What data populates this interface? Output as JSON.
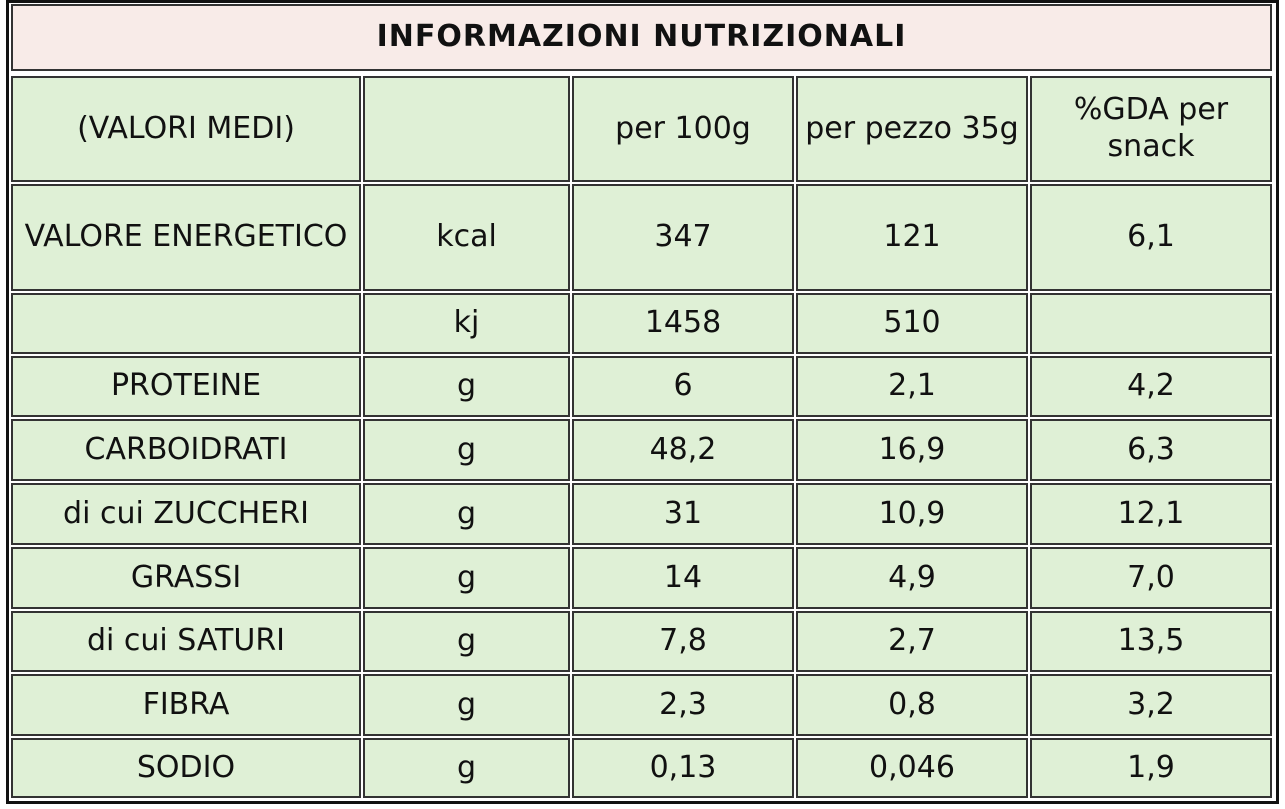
{
  "title": "INFORMAZIONI NUTRIZIONALI",
  "header": [
    "(VALORI MEDI)",
    null,
    "per 100g",
    "per pezzo 35g",
    "%GDA per snack"
  ],
  "rows": [
    [
      "VALORE ENERGETICO",
      "kcal",
      "347",
      "121",
      "6,1"
    ],
    [
      null,
      "kj",
      "1458",
      "510",
      null
    ],
    [
      "PROTEINE",
      "g",
      "6",
      "2,1",
      "4,2"
    ],
    [
      "CARBOIDRATI",
      "g",
      "48,2",
      "16,9",
      "6,3"
    ],
    [
      "di cui ZUCCHERI",
      "g",
      "31",
      "10,9",
      "12,1"
    ],
    [
      "GRASSI",
      "g",
      "14",
      "4,9",
      "7,0"
    ],
    [
      "di cui SATURI",
      "g",
      "7,8",
      "2,7",
      "13,5"
    ],
    [
      "FIBRA",
      "g",
      "2,3",
      "0,8",
      "3,2"
    ],
    [
      "SODIO",
      "g",
      "0,13",
      "0,046",
      "1,9"
    ]
  ]
}
